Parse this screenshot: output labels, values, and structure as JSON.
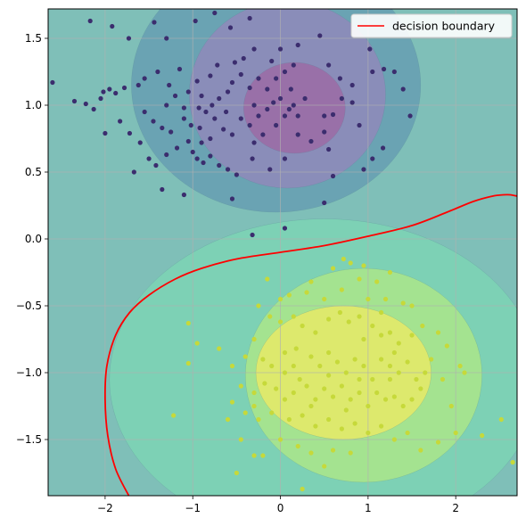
{
  "chart_data": {
    "type": "scatter",
    "title": "",
    "xlabel": "",
    "ylabel": "",
    "xlim": [
      -2.65,
      2.7
    ],
    "ylim": [
      -1.92,
      1.72
    ],
    "xticks": [
      -2,
      -1,
      0,
      1,
      2
    ],
    "xtick_labels": [
      "−2",
      "−1",
      "0",
      "1",
      "2"
    ],
    "yticks": [
      -1.5,
      -1.0,
      -0.5,
      0.0,
      0.5,
      1.0,
      1.5
    ],
    "ytick_labels": [
      "−1.5",
      "−1.0",
      "−0.5",
      "0.0",
      "0.5",
      "1.0",
      "1.5"
    ],
    "grid": true,
    "legend": {
      "position": "top-right",
      "entries": [
        {
          "label": "decision boundary",
          "color": "#ff0000"
        }
      ]
    },
    "background_color": "#7fbfb8",
    "contour_regions": [
      {
        "class": "upper",
        "level": 1,
        "color": "#6aa3b3",
        "center": [
          -0.05,
          1.15
        ],
        "radii": [
          1.65,
          0.95
        ]
      },
      {
        "class": "upper",
        "level": 2,
        "color": "#8a8db9",
        "center": [
          0.08,
          1.08
        ],
        "radii": [
          1.12,
          0.7
        ]
      },
      {
        "class": "upper",
        "level": 3,
        "color": "#9970a8",
        "center": [
          0.16,
          0.98
        ],
        "radii": [
          0.58,
          0.34
        ]
      },
      {
        "class": "lower",
        "level": 1,
        "color": "#7dd1b5",
        "center": [
          0.5,
          -1.05
        ],
        "radii": [
          2.45,
          1.2
        ]
      },
      {
        "class": "lower",
        "level": 2,
        "color": "#a4e390",
        "center": [
          0.95,
          -1.02
        ],
        "radii": [
          1.35,
          0.8
        ]
      },
      {
        "class": "lower",
        "level": 3,
        "color": "#dde96d",
        "center": [
          0.72,
          -1.0
        ],
        "radii": [
          1.0,
          0.5
        ]
      }
    ],
    "decision_boundary": {
      "name": "decision boundary",
      "color": "#ff0000",
      "x": [
        -1.73,
        -1.88,
        -1.97,
        -2.0,
        -1.98,
        -1.88,
        -1.72,
        -1.5,
        -1.2,
        -0.9,
        -0.5,
        0.0,
        0.5,
        1.0,
        1.5,
        1.9,
        2.2,
        2.42,
        2.55,
        2.62,
        2.7
      ],
      "y": [
        -1.92,
        -1.72,
        -1.47,
        -1.2,
        -0.95,
        -0.72,
        -0.55,
        -0.42,
        -0.3,
        -0.22,
        -0.15,
        -0.1,
        -0.05,
        0.02,
        0.1,
        0.2,
        0.28,
        0.32,
        0.33,
        0.33,
        0.32
      ]
    },
    "series": [
      {
        "class": "upper",
        "color": "#3b2d6e",
        "points": [
          [
            -2.6,
            1.17
          ],
          [
            -2.17,
            1.63
          ],
          [
            -1.92,
            1.59
          ],
          [
            -1.73,
            1.5
          ],
          [
            -1.44,
            1.62
          ],
          [
            -1.3,
            1.5
          ],
          [
            -0.97,
            1.63
          ],
          [
            -0.75,
            1.69
          ],
          [
            -0.57,
            1.58
          ],
          [
            -0.35,
            1.65
          ],
          [
            -1.15,
            1.27
          ],
          [
            -1.27,
            1.15
          ],
          [
            -1.4,
            1.25
          ],
          [
            -1.55,
            1.2
          ],
          [
            -1.62,
            1.15
          ],
          [
            -1.78,
            1.13
          ],
          [
            -1.88,
            1.09
          ],
          [
            -1.95,
            1.12
          ],
          [
            -2.02,
            1.1
          ],
          [
            -2.05,
            1.05
          ],
          [
            -2.22,
            1.01
          ],
          [
            -2.35,
            1.03
          ],
          [
            -2.13,
            0.97
          ],
          [
            -2.0,
            0.79
          ],
          [
            -1.83,
            0.88
          ],
          [
            -1.72,
            0.79
          ],
          [
            -1.6,
            0.72
          ],
          [
            -1.5,
            0.6
          ],
          [
            -1.42,
            0.55
          ],
          [
            -1.3,
            0.63
          ],
          [
            -1.18,
            0.68
          ],
          [
            -1.05,
            0.73
          ],
          [
            -0.95,
            0.6
          ],
          [
            -0.88,
            0.57
          ],
          [
            -0.8,
            0.62
          ],
          [
            -0.7,
            0.55
          ],
          [
            -0.6,
            0.52
          ],
          [
            -0.5,
            0.48
          ],
          [
            -0.32,
            0.6
          ],
          [
            -0.12,
            0.52
          ],
          [
            0.05,
            0.6
          ],
          [
            -1.55,
            0.95
          ],
          [
            -1.45,
            0.88
          ],
          [
            -1.35,
            0.83
          ],
          [
            -1.25,
            0.8
          ],
          [
            -1.1,
            0.9
          ],
          [
            -1.02,
            0.85
          ],
          [
            -0.92,
            0.83
          ],
          [
            -0.85,
            0.95
          ],
          [
            -0.75,
            0.9
          ],
          [
            -0.65,
            0.82
          ],
          [
            -0.55,
            0.78
          ],
          [
            -0.45,
            0.9
          ],
          [
            -0.35,
            0.85
          ],
          [
            -0.25,
            0.92
          ],
          [
            -0.15,
            0.97
          ],
          [
            -0.08,
            1.02
          ],
          [
            0.0,
            1.05
          ],
          [
            0.05,
            0.92
          ],
          [
            0.1,
            0.97
          ],
          [
            0.15,
            1.0
          ],
          [
            0.2,
            0.92
          ],
          [
            0.28,
            1.05
          ],
          [
            -0.6,
            1.1
          ],
          [
            -0.7,
            1.05
          ],
          [
            -0.55,
            1.17
          ],
          [
            -0.45,
            1.23
          ],
          [
            -0.35,
            1.13
          ],
          [
            -0.25,
            1.2
          ],
          [
            -0.15,
            1.12
          ],
          [
            -0.05,
            1.2
          ],
          [
            0.05,
            1.25
          ],
          [
            0.15,
            1.3
          ],
          [
            -0.52,
            1.32
          ],
          [
            -0.42,
            1.35
          ],
          [
            -0.3,
            1.42
          ],
          [
            -0.72,
            1.3
          ],
          [
            -0.8,
            1.22
          ],
          [
            -0.95,
            1.18
          ],
          [
            -1.05,
            1.1
          ],
          [
            -1.2,
            1.07
          ],
          [
            -0.9,
            1.07
          ],
          [
            -0.78,
            1.0
          ],
          [
            -0.3,
            0.72
          ],
          [
            -0.2,
            0.78
          ],
          [
            -0.05,
            0.85
          ],
          [
            0.2,
            0.78
          ],
          [
            0.35,
            0.73
          ],
          [
            0.5,
            0.8
          ],
          [
            0.6,
            0.93
          ],
          [
            0.7,
            1.05
          ],
          [
            0.82,
            1.15
          ],
          [
            0.9,
            0.85
          ],
          [
            1.05,
            1.25
          ],
          [
            1.02,
            1.42
          ],
          [
            1.18,
            1.27
          ],
          [
            1.3,
            1.25
          ],
          [
            1.4,
            1.12
          ],
          [
            1.48,
            0.92
          ],
          [
            1.17,
            0.68
          ],
          [
            1.05,
            0.6
          ],
          [
            0.95,
            0.52
          ],
          [
            0.6,
            0.47
          ],
          [
            0.55,
            0.67
          ],
          [
            0.5,
            0.92
          ],
          [
            -0.1,
            1.33
          ],
          [
            0.0,
            1.42
          ],
          [
            0.2,
            1.45
          ],
          [
            0.45,
            1.52
          ],
          [
            0.55,
            1.3
          ],
          [
            0.68,
            1.2
          ],
          [
            0.82,
            1.02
          ],
          [
            -1.1,
            0.33
          ],
          [
            -1.35,
            0.37
          ],
          [
            -0.55,
            0.3
          ],
          [
            -0.32,
            0.03
          ],
          [
            0.05,
            0.08
          ],
          [
            0.5,
            0.27
          ],
          [
            -1.67,
            0.5
          ],
          [
            -0.93,
            0.98
          ],
          [
            -1.1,
            0.98
          ],
          [
            -1.3,
            1.0
          ],
          [
            -0.62,
            0.95
          ],
          [
            -0.3,
            1.0
          ],
          [
            0.12,
            1.12
          ],
          [
            -0.8,
            0.75
          ],
          [
            -0.9,
            0.72
          ],
          [
            -1.0,
            0.65
          ]
        ]
      },
      {
        "class": "lower",
        "color": "#c6d93a",
        "points": [
          [
            0.1,
            -0.42
          ],
          [
            0.3,
            -0.4
          ],
          [
            0.5,
            -0.45
          ],
          [
            0.7,
            -0.38
          ],
          [
            0.9,
            -0.3
          ],
          [
            1.1,
            -0.32
          ],
          [
            1.2,
            -0.45
          ],
          [
            1.4,
            -0.48
          ],
          [
            1.5,
            -0.5
          ],
          [
            0.72,
            -0.15
          ],
          [
            0.95,
            -0.2
          ],
          [
            1.25,
            -0.25
          ],
          [
            -1.05,
            -0.63
          ],
          [
            -0.95,
            -0.78
          ],
          [
            -1.05,
            -0.93
          ],
          [
            -1.22,
            -1.32
          ],
          [
            -0.25,
            -0.5
          ],
          [
            -0.12,
            -0.58
          ],
          [
            0.0,
            -0.62
          ],
          [
            0.15,
            -0.58
          ],
          [
            0.25,
            -0.65
          ],
          [
            0.4,
            -0.7
          ],
          [
            0.55,
            -0.6
          ],
          [
            0.68,
            -0.55
          ],
          [
            0.78,
            -0.62
          ],
          [
            0.9,
            -0.58
          ],
          [
            1.05,
            -0.65
          ],
          [
            1.15,
            -0.72
          ],
          [
            1.25,
            -0.7
          ],
          [
            1.35,
            -0.78
          ],
          [
            1.5,
            -0.72
          ],
          [
            1.62,
            -0.65
          ],
          [
            1.8,
            -0.7
          ],
          [
            -0.7,
            -0.82
          ],
          [
            -0.55,
            -0.95
          ],
          [
            -0.4,
            -0.88
          ],
          [
            -0.3,
            -0.75
          ],
          [
            -0.2,
            -0.9
          ],
          [
            -0.1,
            -0.95
          ],
          [
            0.05,
            -0.85
          ],
          [
            0.15,
            -0.95
          ],
          [
            0.22,
            -1.05
          ],
          [
            0.35,
            -0.88
          ],
          [
            0.45,
            -0.95
          ],
          [
            0.55,
            -0.85
          ],
          [
            0.65,
            -0.92
          ],
          [
            0.75,
            -1.0
          ],
          [
            0.85,
            -0.9
          ],
          [
            0.95,
            -0.95
          ],
          [
            1.05,
            -1.05
          ],
          [
            1.15,
            -0.9
          ],
          [
            1.25,
            -0.95
          ],
          [
            1.35,
            -1.0
          ],
          [
            1.45,
            -0.92
          ],
          [
            1.55,
            -1.05
          ],
          [
            1.65,
            -1.0
          ],
          [
            1.72,
            -0.9
          ],
          [
            1.6,
            -1.12
          ],
          [
            -0.45,
            -1.1
          ],
          [
            -0.3,
            -1.15
          ],
          [
            -0.18,
            -1.08
          ],
          [
            -0.05,
            -1.12
          ],
          [
            0.05,
            -1.2
          ],
          [
            0.15,
            -1.15
          ],
          [
            0.3,
            -1.1
          ],
          [
            0.4,
            -1.2
          ],
          [
            0.5,
            -1.12
          ],
          [
            0.6,
            -1.18
          ],
          [
            0.7,
            -1.1
          ],
          [
            0.8,
            -1.2
          ],
          [
            0.9,
            -1.15
          ],
          [
            1.0,
            -1.25
          ],
          [
            1.1,
            -1.15
          ],
          [
            1.2,
            -1.2
          ],
          [
            1.3,
            -1.18
          ],
          [
            1.4,
            -1.25
          ],
          [
            1.5,
            -1.2
          ],
          [
            -0.55,
            -1.22
          ],
          [
            -0.4,
            -1.3
          ],
          [
            -0.25,
            -1.35
          ],
          [
            -0.1,
            -1.3
          ],
          [
            0.1,
            -1.35
          ],
          [
            0.25,
            -1.32
          ],
          [
            0.4,
            -1.4
          ],
          [
            0.55,
            -1.35
          ],
          [
            0.7,
            -1.42
          ],
          [
            0.85,
            -1.38
          ],
          [
            1.0,
            -1.45
          ],
          [
            1.15,
            -1.4
          ],
          [
            1.3,
            -1.5
          ],
          [
            1.45,
            -1.45
          ],
          [
            0.0,
            -1.5
          ],
          [
            0.2,
            -1.55
          ],
          [
            0.35,
            -1.6
          ],
          [
            -0.2,
            -1.62
          ],
          [
            0.6,
            -1.58
          ],
          [
            0.8,
            -1.6
          ],
          [
            1.6,
            -1.58
          ],
          [
            1.8,
            -1.52
          ],
          [
            2.0,
            -1.45
          ],
          [
            2.3,
            -1.47
          ],
          [
            2.52,
            -1.35
          ],
          [
            2.65,
            -1.67
          ],
          [
            -0.45,
            -1.5
          ],
          [
            -0.3,
            -1.62
          ],
          [
            -0.5,
            -1.75
          ],
          [
            0.25,
            -1.87
          ],
          [
            0.5,
            -1.7
          ],
          [
            2.1,
            -1.0
          ],
          [
            2.05,
            -0.95
          ],
          [
            1.85,
            -1.05
          ],
          [
            1.9,
            -0.8
          ],
          [
            1.95,
            -1.25
          ],
          [
            0.0,
            -0.45
          ],
          [
            0.35,
            -0.32
          ],
          [
            0.6,
            -0.22
          ],
          [
            0.8,
            -0.18
          ],
          [
            1.0,
            -0.45
          ],
          [
            1.15,
            -0.55
          ],
          [
            -0.15,
            -0.3
          ],
          [
            0.18,
            -0.82
          ],
          [
            0.05,
            -1.0
          ],
          [
            0.95,
            -0.75
          ],
          [
            0.55,
            -1.02
          ],
          [
            1.3,
            -0.85
          ],
          [
            -0.6,
            -1.35
          ],
          [
            0.35,
            -1.25
          ],
          [
            0.75,
            -1.28
          ],
          [
            1.25,
            -1.05
          ],
          [
            -0.3,
            -1.25
          ],
          [
            0.9,
            -1.05
          ]
        ]
      }
    ]
  }
}
